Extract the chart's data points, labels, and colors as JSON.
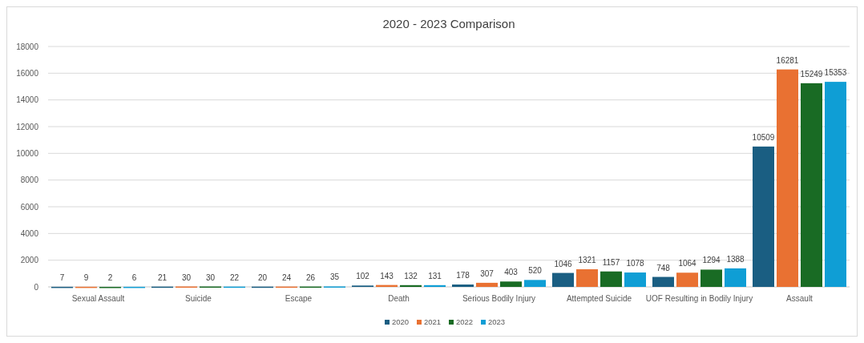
{
  "chart_data": {
    "type": "bar",
    "title": "2020 - 2023 Comparison",
    "categories": [
      "Sexual Assault",
      "Suicide",
      "Escape",
      "Death",
      "Serious Bodily Injury",
      "Attempted Suicide",
      "UOF Resulting in Bodily Injury",
      "Assault"
    ],
    "series": [
      {
        "name": "2020",
        "color": "#1a5e82",
        "values": [
          7,
          21,
          20,
          102,
          178,
          1046,
          748,
          10509
        ]
      },
      {
        "name": "2021",
        "color": "#e97132",
        "values": [
          9,
          30,
          24,
          143,
          307,
          1321,
          1064,
          16281
        ]
      },
      {
        "name": "2022",
        "color": "#196b24",
        "values": [
          2,
          30,
          26,
          132,
          403,
          1157,
          1294,
          15249
        ]
      },
      {
        "name": "2023",
        "color": "#0f9ed5",
        "values": [
          6,
          22,
          35,
          131,
          520,
          1078,
          1388,
          15353
        ]
      }
    ],
    "ylim": [
      0,
      18000
    ],
    "yticks": [
      0,
      2000,
      4000,
      6000,
      8000,
      10000,
      12000,
      14000,
      16000,
      18000
    ],
    "grid": "y",
    "legend": "bottom",
    "data_labels": true
  }
}
